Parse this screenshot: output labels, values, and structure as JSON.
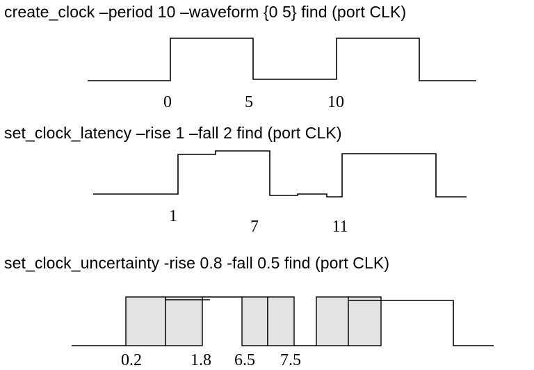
{
  "diagram": {
    "create_clock": {
      "command": "create_clock –period 10 –waveform {0 5} find (port CLK)",
      "ticks": [
        "0",
        "5",
        "10"
      ]
    },
    "latency": {
      "command": "set_clock_latency –rise 1 –fall 2 find (port CLK)",
      "ticks": [
        "1",
        "7",
        "11"
      ]
    },
    "uncertainty": {
      "command": "set_clock_uncertainty -rise 0.8 -fall 0.5 find (port CLK)",
      "ticks": [
        "0.2",
        "1.8",
        "6.5",
        "7.5"
      ]
    }
  }
}
